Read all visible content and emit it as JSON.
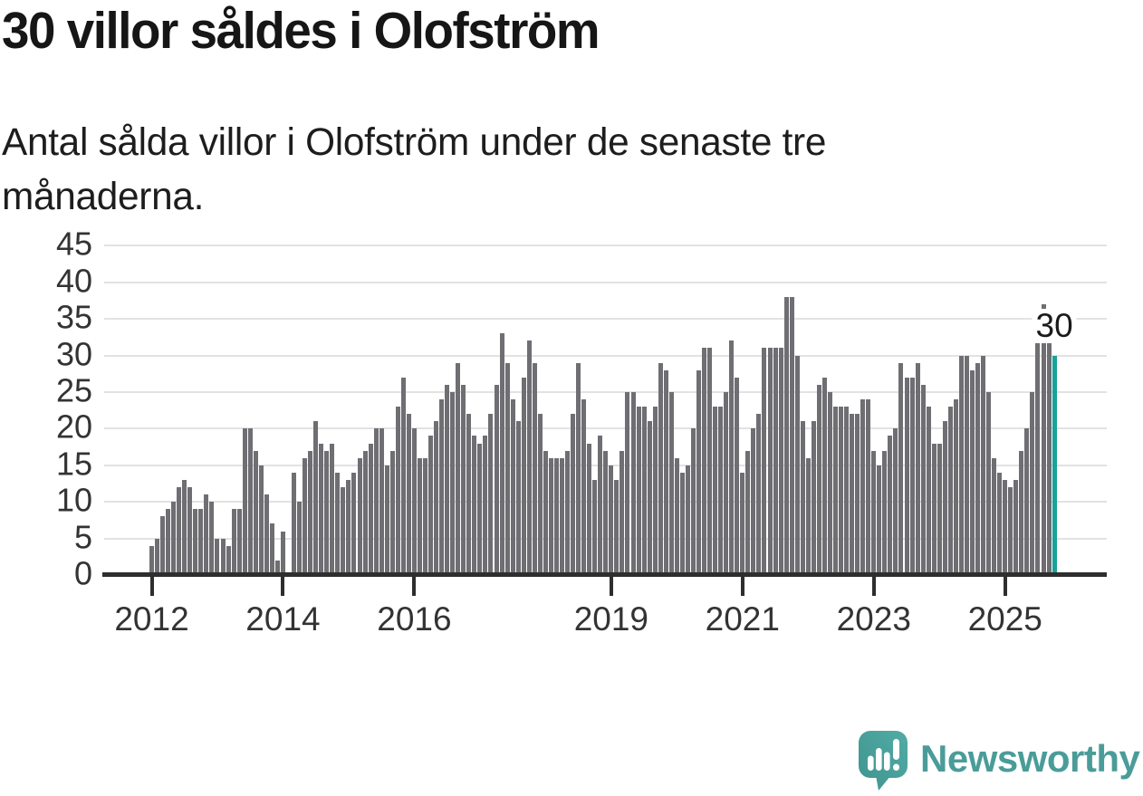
{
  "header": {
    "title": "30 villor såldes i Olofström",
    "subtitle_lines": [
      "Antal sålda villor i Olofström under de senaste tre",
      "månaderna."
    ]
  },
  "chart_data": {
    "type": "bar",
    "title": "30 villor såldes i Olofström",
    "subtitle": "Antal sålda villor i Olofström under de senaste tre månaderna.",
    "ylabel": "",
    "xlabel": "",
    "ylim": [
      0,
      45
    ],
    "y_ticks": [
      0,
      5,
      10,
      15,
      20,
      25,
      30,
      35,
      40,
      45
    ],
    "x_tick_labels": [
      "2012",
      "2014",
      "2016",
      "2019",
      "2021",
      "2023",
      "2025"
    ],
    "x_tick_indices": [
      0,
      24,
      48,
      84,
      108,
      132,
      156
    ],
    "grid": "horizontal",
    "legend": "none",
    "values": [
      4,
      5,
      8,
      9,
      10,
      12,
      13,
      12,
      9,
      9,
      11,
      10,
      5,
      5,
      4,
      9,
      9,
      20,
      20,
      17,
      15,
      11,
      7,
      2,
      6,
      0,
      14,
      10,
      16,
      17,
      21,
      18,
      17,
      18,
      14,
      12,
      13,
      14,
      16,
      17,
      18,
      20,
      20,
      15,
      17,
      23,
      27,
      22,
      20,
      16,
      16,
      19,
      21,
      24,
      26,
      25,
      29,
      26,
      22,
      19,
      18,
      19,
      22,
      26,
      33,
      29,
      24,
      21,
      27,
      32,
      29,
      22,
      17,
      16,
      16,
      16,
      17,
      22,
      29,
      24,
      18,
      13,
      19,
      17,
      15,
      13,
      17,
      25,
      25,
      23,
      23,
      21,
      23,
      29,
      28,
      25,
      16,
      14,
      15,
      20,
      28,
      31,
      31,
      23,
      23,
      25,
      32,
      27,
      14,
      17,
      20,
      22,
      31,
      31,
      31,
      31,
      38,
      38,
      30,
      21,
      16,
      21,
      26,
      27,
      25,
      23,
      23,
      23,
      22,
      22,
      24,
      24,
      17,
      15,
      17,
      19,
      20,
      29,
      27,
      27,
      29,
      26,
      23,
      18,
      18,
      21,
      23,
      24,
      30,
      30,
      28,
      29,
      30,
      25,
      16,
      14,
      13,
      12,
      13,
      17,
      20,
      25,
      32,
      37,
      32,
      30
    ],
    "highlight_last_bar": true,
    "last_value_label": "30",
    "bar_color": "#6e6e73",
    "highlight_color": "#17a29a",
    "grid_color": "#e2e2e2",
    "axis_color": "#2e2e2e"
  },
  "annotation": {
    "last_value": "30"
  },
  "footer": {
    "brand": "Newsworthy",
    "logo_color_light": "#52aba5",
    "logo_color_dark": "#3f948f",
    "wordmark_color": "#4a9c99"
  }
}
